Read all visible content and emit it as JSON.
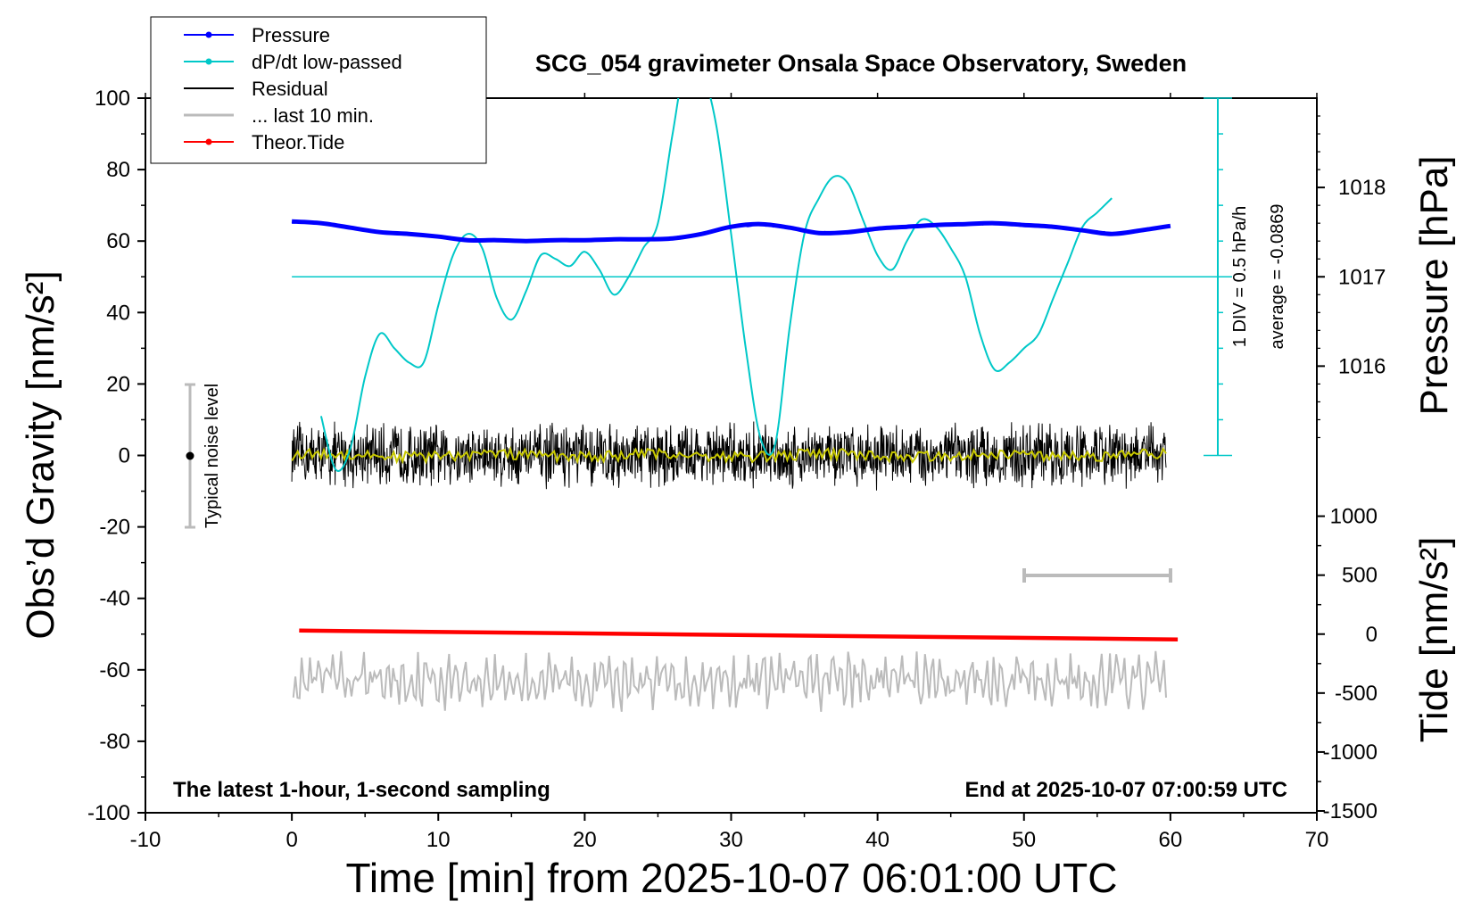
{
  "chart_data": {
    "type": "line",
    "title": "SCG_054 gravimeter Onsala Space Observatory, Sweden",
    "xlabel": "Time [min] from 2025-10-07 06:01:00 UTC",
    "xlim": [
      -10,
      70
    ],
    "xticks": [
      "-10",
      "0",
      "10",
      "20",
      "30",
      "40",
      "50",
      "60",
      "70"
    ],
    "left_axis": {
      "label": "Obs’d Gravity [nm/s²]",
      "ylim": [
        -100,
        100
      ],
      "ticks": [
        "100",
        "80",
        "60",
        "40",
        "20",
        "0",
        "-20",
        "-40",
        "-60",
        "-80",
        "-100"
      ]
    },
    "pressure_axis": {
      "label": "Pressure [hPa]",
      "ticks": [
        "1018",
        "1017",
        "1016"
      ]
    },
    "tide_axis": {
      "label": "Tide [nm/s²]",
      "ticks": [
        "1000",
        "500",
        "0",
        "-500",
        "-1000",
        "-1500"
      ]
    },
    "legend": {
      "placement": "top-left",
      "entries": [
        {
          "name": "Pressure",
          "color": "#0000ff",
          "marker": true
        },
        {
          "name": "dP/dt low-passed",
          "color": "#00c8c8",
          "marker": true
        },
        {
          "name": "Residual",
          "color": "#000000",
          "marker": false
        },
        {
          "name": "... last 10 min.",
          "color": "#bbbbbb",
          "marker": false
        },
        {
          "name": "Theor.Tide",
          "color": "#ff0000",
          "marker": true
        }
      ]
    },
    "annotations": {
      "bottom_left": "The latest 1-hour, 1-second sampling",
      "bottom_right": "End at 2025-10-07 07:00:59 UTC",
      "noise": "Typical noise level",
      "dpdt_scale": "1 DIV = 0.5 hPa/h",
      "dpdt_average": "average = -0.0869"
    },
    "series": [
      {
        "name": "Pressure",
        "color": "#0000ff",
        "axis": "pressure",
        "x": [
          0,
          2,
          4,
          6,
          8,
          10,
          12,
          14,
          16,
          18,
          20,
          22,
          24,
          26,
          28,
          30,
          32,
          34,
          36,
          38,
          40,
          42,
          44,
          46,
          48,
          50,
          52,
          54,
          56,
          58,
          60
        ],
        "y": [
          1017.62,
          1017.6,
          1017.55,
          1017.5,
          1017.48,
          1017.45,
          1017.41,
          1017.41,
          1017.4,
          1017.41,
          1017.41,
          1017.42,
          1017.42,
          1017.43,
          1017.48,
          1017.56,
          1017.59,
          1017.55,
          1017.49,
          1017.5,
          1017.54,
          1017.56,
          1017.58,
          1017.59,
          1017.6,
          1017.58,
          1017.56,
          1017.52,
          1017.48,
          1017.52,
          1017.57
        ]
      },
      {
        "name": "dP/dt low-passed",
        "color": "#00c8c8",
        "axis": "gravity",
        "x": [
          2,
          3,
          4,
          5,
          6,
          7,
          8,
          9,
          10,
          11,
          12,
          13,
          14,
          15,
          16,
          17,
          18,
          19,
          20,
          21,
          22,
          23,
          24,
          25,
          26,
          27,
          28,
          29,
          30,
          31,
          32,
          33,
          34,
          35,
          36,
          37,
          38,
          39,
          40,
          41,
          42,
          43,
          44,
          45,
          46,
          47,
          48,
          49,
          50,
          51,
          52,
          53,
          54,
          55,
          56
        ],
        "y": [
          11,
          -4,
          2,
          22,
          34,
          30,
          26,
          26,
          42,
          56,
          62,
          58,
          44,
          38,
          46,
          56,
          55,
          53,
          57,
          52,
          45,
          50,
          58,
          65,
          90,
          112,
          108,
          92,
          62,
          30,
          5,
          3,
          36,
          62,
          72,
          78,
          76,
          66,
          56,
          52,
          60,
          66,
          64,
          58,
          50,
          34,
          24,
          26,
          30,
          34,
          44,
          54,
          64,
          68,
          72
        ]
      },
      {
        "name": "Residual",
        "color": "#000000",
        "axis": "gravity",
        "x_range": [
          0,
          59.7
        ],
        "amplitude": 10,
        "extremes": [
          12,
          -18
        ]
      },
      {
        "name": "... last 10 min.",
        "color": "#bbbbbb",
        "axis": "gravity",
        "baseline": -63,
        "amplitude": 8,
        "extremes": [
          -48,
          -72
        ]
      },
      {
        "name": "Theor.Tide",
        "color": "#ff0000",
        "axis": "tide",
        "x": [
          0.5,
          60.5
        ],
        "y": [
          30,
          -45
        ]
      }
    ],
    "reference_lines": [
      {
        "name": "dP/dt zero",
        "axis": "gravity",
        "y": 50,
        "color": "#00c8c8"
      }
    ]
  }
}
